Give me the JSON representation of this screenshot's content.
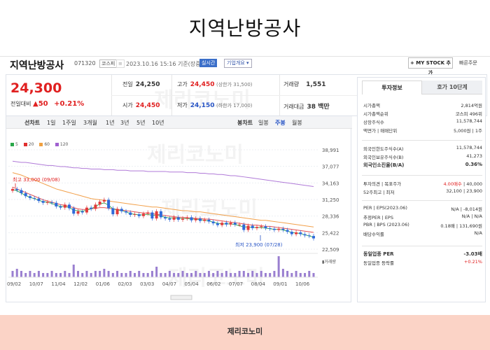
{
  "headline": "지역난방공사",
  "titlebar": {
    "name": "지역난방공사",
    "code": "071320",
    "market_badge": "코스피",
    "datetime": "2023.10.16 15:16",
    "basis": "기준(장중)",
    "live_badge": "실시간",
    "company_info": "기업개요 ▾",
    "mystock_button": "+ MY STOCK 추가",
    "quick_menu": "빠른주문"
  },
  "price": {
    "current": "24,300",
    "change_label": "전일대비",
    "change_value": "▲50",
    "change_pct": "+0.21%",
    "prev_close_label": "전일",
    "prev_close": "24,250",
    "high_label": "고가",
    "high": "24,450",
    "upper_limit": "(상한가 31,500)",
    "volume_label": "거래량",
    "volume": "1,551",
    "open_label": "시가",
    "open": "24,450",
    "low_label": "저가",
    "low": "24,150",
    "lower_limit": "(하한가 17,000)",
    "amount_label": "거래대금",
    "amount": "38 백만"
  },
  "period_bar": {
    "line_chart": "선차트",
    "periods": [
      "1일",
      "1주일",
      "3개월",
      "1년",
      "3년",
      "5년",
      "10년"
    ],
    "candle_chart": "봉차트",
    "candle_periods": [
      "일봉",
      "주봉",
      "월봉"
    ]
  },
  "legend": [
    {
      "label": "5",
      "color": "#2aa84a"
    },
    {
      "label": "20",
      "color": "#e03030"
    },
    {
      "label": "60",
      "color": "#f0a040"
    },
    {
      "label": "120",
      "color": "#a060d0"
    }
  ],
  "chart_data": {
    "type": "candlestick",
    "y_ticks": [
      "38,991",
      "37,077",
      "34,163",
      "31,250",
      "28,336",
      "25,422",
      "22,509"
    ],
    "ylim": [
      22509,
      38991
    ],
    "x_ticks": [
      "09/02",
      "10/07",
      "11/04",
      "12/02",
      "01/06",
      "02/03",
      "03/03",
      "04/07",
      "05/04",
      "06/02",
      "07/07",
      "08/04",
      "09/01",
      "10/06"
    ],
    "high_annotation": "최고 33,000 (09/08)",
    "low_annotation": "최저 23,900 (07/28)",
    "volume_legend": "거래량",
    "closes": [
      32500,
      32300,
      31800,
      31300,
      31000,
      30900,
      30500,
      30200,
      30300,
      30200,
      29600,
      29400,
      29900,
      29300,
      28400,
      28800,
      28600,
      29400,
      29200,
      29900,
      30400,
      30700,
      29300,
      28300,
      29200,
      28800,
      28600,
      28200,
      28300,
      28000,
      28400,
      28600,
      27600,
      28800,
      27800,
      27600,
      27400,
      27800,
      27400,
      27600,
      27800,
      27300,
      27600,
      27200,
      27400,
      27100,
      26800,
      26500,
      26900,
      26600,
      26900,
      26600,
      26600,
      25700,
      26400,
      26000,
      26200,
      26300,
      26000,
      25900,
      25700,
      25900,
      25700,
      25400,
      25000,
      25300,
      25000,
      24800,
      24700,
      24300
    ],
    "ma5": [
      32400,
      32200,
      31800,
      31400,
      31100,
      30900,
      30600,
      30400,
      30300,
      30100,
      29800,
      29600,
      29600,
      29400,
      29000,
      28900,
      28800,
      29000,
      29200,
      29600,
      30000,
      30200,
      29800,
      29200,
      29000,
      28900,
      28700,
      28400,
      28300,
      28200,
      28200,
      28300,
      28100,
      28200,
      28000,
      27800,
      27700,
      27700,
      27600,
      27600,
      27600,
      27500,
      27500,
      27400,
      27300,
      27200,
      27000,
      26800,
      26700,
      26700,
      26700,
      26600,
      26400,
      26200,
      26200,
      26100,
      26100,
      26100,
      26000,
      25900,
      25800,
      25800,
      25700,
      25500,
      25300,
      25200,
      25100,
      24900,
      24700,
      24500
    ],
    "ma20": [
      32800,
      32500,
      32200,
      31900,
      31600,
      31300,
      31000,
      30700,
      30500,
      30300,
      30100,
      29900,
      29800,
      29600,
      29400,
      29200,
      29100,
      29100,
      29200,
      29300,
      29400,
      29400,
      29300,
      29200,
      29100,
      29000,
      28900,
      28800,
      28700,
      28600,
      28500,
      28500,
      28400,
      28300,
      28200,
      28100,
      28000,
      27900,
      27800,
      27800,
      27700,
      27700,
      27600,
      27600,
      27500,
      27500,
      27400,
      27300,
      27200,
      27100,
      27000,
      26900,
      26800,
      26700,
      26600,
      26500,
      26500,
      26400,
      26300,
      26300,
      26200,
      26100,
      26000,
      25900,
      25800,
      25700,
      25600,
      25500,
      25400,
      25300
    ],
    "ma60": [
      35200,
      35000,
      34800,
      34500,
      34200,
      34000,
      33700,
      33400,
      33100,
      32800,
      32500,
      32300,
      32100,
      31900,
      31700,
      31500,
      31300,
      31100,
      30900,
      30800,
      30700,
      30600,
      30500,
      30400,
      30300,
      30200,
      30100,
      30000,
      29900,
      29800,
      29700,
      29600,
      29500,
      29500,
      29400,
      29300,
      29200,
      29100,
      29000,
      28900,
      28900,
      28800,
      28700,
      28700,
      28600,
      28500,
      28400,
      28300,
      28200,
      28100,
      28000,
      27900,
      27800,
      27700,
      27600,
      27500,
      27400,
      27300,
      27300,
      27200,
      27100,
      27000,
      26900,
      26800,
      26700,
      26600,
      26500,
      26400,
      26300,
      26200
    ],
    "ma120": [
      37100,
      37000,
      36900,
      36900,
      36800,
      36700,
      36600,
      36500,
      36400,
      36400,
      36300,
      36200,
      36200,
      36100,
      36000,
      36000,
      35900,
      35900,
      35800,
      35800,
      35800,
      35700,
      35700,
      35700,
      35600,
      35600,
      35600,
      35500,
      35500,
      35500,
      35500,
      35400,
      35400,
      35400,
      35400,
      35400,
      35300,
      35300,
      35300,
      35300,
      35200,
      35200,
      35200,
      35100,
      35100,
      35000,
      35000,
      34900,
      34900,
      34800,
      34700,
      34700,
      34600,
      34500,
      34400,
      34300,
      34200,
      34100,
      34000,
      33900,
      33800,
      33700,
      33600,
      33500,
      33400,
      33300,
      33200,
      33100,
      33000,
      32900
    ],
    "volume": [
      3,
      4,
      3,
      2,
      3,
      2,
      3,
      2,
      2,
      3,
      2,
      2,
      3,
      2,
      6,
      3,
      2,
      3,
      2,
      3,
      3,
      4,
      3,
      2,
      3,
      2,
      2,
      3,
      2,
      3,
      2,
      2,
      3,
      5,
      2,
      2,
      3,
      2,
      2,
      3,
      2,
      2,
      3,
      2,
      2,
      3,
      2,
      3,
      2,
      3,
      2,
      2,
      3,
      3,
      2,
      3,
      2,
      3,
      2,
      2,
      3,
      10,
      4,
      3,
      2,
      3,
      2,
      2,
      3,
      2
    ]
  },
  "right_panel": {
    "tab_invest": "투자정보",
    "tab_orderbook": "호가 10단계",
    "rows_a": [
      {
        "k": "시가총액",
        "v": "2,814억원"
      },
      {
        "k": "시가총액순위",
        "v": "코스피 496위"
      },
      {
        "k": "상장주식수",
        "v": "11,578,744"
      },
      {
        "k": "액면가 | 매매단위",
        "v": "5,000원 | 1주"
      }
    ],
    "rows_b": [
      {
        "k": "외국인한도주식수(A)",
        "v": "11,578,744"
      },
      {
        "k": "외국인보유주식수(B)",
        "v": "41,273"
      },
      {
        "k": "외국인소진율(B/A)",
        "v": "0.36%"
      }
    ],
    "rows_c": [
      {
        "k": "투자의견 | 목표주가",
        "v1": "4.00매수",
        "v2": " | 40,000"
      },
      {
        "k": "52주최고 | 최저",
        "v": "32,100 | 23,900"
      }
    ],
    "rows_d": [
      {
        "k": "PER | EPS(2023.06)",
        "v": "N/A | -8,014원"
      },
      {
        "k": "추정PER | EPS",
        "v": "N/A | N/A"
      },
      {
        "k": "PBR | BPS (2023.06)",
        "v": "0.18배 | 131,690원"
      },
      {
        "k": "배당수익률",
        "v": "N/A"
      }
    ],
    "rows_e": [
      {
        "k": "동일업종 PER",
        "v": "-3.03배"
      },
      {
        "k": "동일업종 등락률",
        "v": "+0.21%"
      }
    ]
  },
  "watermark": "제리코노미",
  "footer": "제리코노미"
}
